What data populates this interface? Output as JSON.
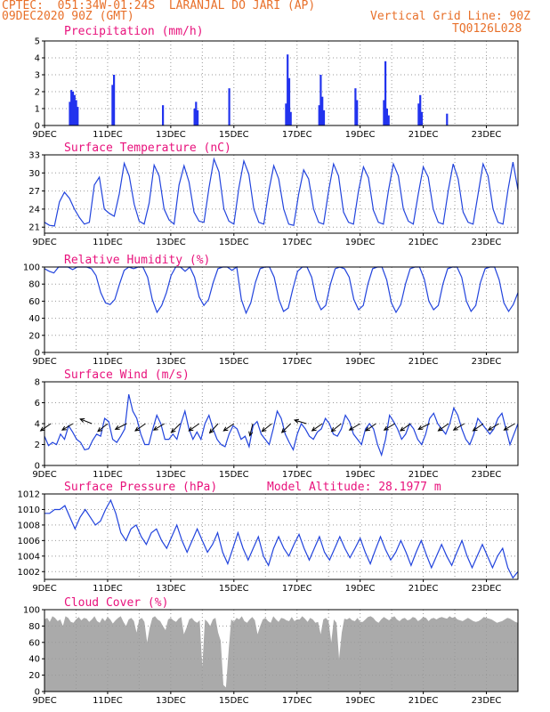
{
  "header": {
    "line1_left": "CPTEC:  051:34W-01:24S  LARANJAL DO JARI (AP)",
    "line2_left": "09DEC2020 90Z (GMT)",
    "line2_right": "Vertical Grid Line: 90Z",
    "line3_right": "TQ0126L028"
  },
  "colors": {
    "header": "#e8702a",
    "title": "#e8127c",
    "line": "#2244dd",
    "bar": "#2233ee",
    "cloud": "#aaaaaa",
    "grid": "#999999"
  },
  "x_ticks": [
    "9DEC",
    "11DEC",
    "13DEC",
    "15DEC",
    "17DEC",
    "19DEC",
    "21DEC",
    "23DEC"
  ],
  "chart_data": [
    {
      "type": "bar",
      "title": "Precipitation (mm/h)",
      "ylim": [
        0,
        5
      ],
      "yticks": [
        0,
        1,
        2,
        3,
        4,
        5
      ],
      "grid": true,
      "x_unit": "days since 09DEC2020",
      "series": [
        {
          "color": "#2233ee",
          "points": [
            [
              0.8,
              1.4
            ],
            [
              0.85,
              2.1
            ],
            [
              0.9,
              2.0
            ],
            [
              0.95,
              1.8
            ],
            [
              1.0,
              1.5
            ],
            [
              1.05,
              1.1
            ],
            [
              2.15,
              2.4
            ],
            [
              2.2,
              3.0
            ],
            [
              3.75,
              1.2
            ],
            [
              4.75,
              1.0
            ],
            [
              4.8,
              1.4
            ],
            [
              4.85,
              0.9
            ],
            [
              5.85,
              2.2
            ],
            [
              7.65,
              1.3
            ],
            [
              7.7,
              4.2
            ],
            [
              7.75,
              2.8
            ],
            [
              7.8,
              0.8
            ],
            [
              8.7,
              1.2
            ],
            [
              8.75,
              3.0
            ],
            [
              8.8,
              1.7
            ],
            [
              8.85,
              0.9
            ],
            [
              9.85,
              2.2
            ],
            [
              9.9,
              1.5
            ],
            [
              10.75,
              1.5
            ],
            [
              10.8,
              3.8
            ],
            [
              10.85,
              1.0
            ],
            [
              10.9,
              0.6
            ],
            [
              11.85,
              1.3
            ],
            [
              11.9,
              1.8
            ],
            [
              11.95,
              0.8
            ],
            [
              12.75,
              0.7
            ]
          ]
        }
      ]
    },
    {
      "type": "line",
      "title": "Surface Temperature (nC)",
      "ylim": [
        20,
        33
      ],
      "yticks": [
        21,
        24,
        27,
        30,
        33
      ],
      "grid": true,
      "series": [
        {
          "color": "#2244dd",
          "values": [
            21.8,
            21.3,
            21.2,
            25.2,
            26.8,
            25.8,
            24.0,
            22.6,
            21.5,
            21.8,
            28.0,
            29.3,
            24.0,
            23.3,
            22.8,
            26.5,
            31.6,
            29.5,
            24.8,
            22.0,
            21.5,
            25.0,
            31.3,
            29.5,
            24.0,
            22.2,
            21.5,
            28.0,
            31.2,
            28.5,
            23.5,
            22.0,
            21.8,
            27.5,
            32.3,
            30.2,
            24.0,
            22.0,
            21.5,
            27.5,
            32.0,
            29.8,
            24.0,
            21.8,
            21.5,
            27.0,
            31.2,
            29.0,
            24.0,
            21.5,
            21.3,
            26.5,
            30.5,
            29.0,
            24.0,
            21.8,
            21.5,
            27.0,
            31.5,
            29.5,
            23.5,
            21.8,
            21.5,
            27.0,
            31.0,
            29.2,
            23.8,
            21.8,
            21.5,
            27.0,
            31.5,
            29.5,
            24.0,
            22.0,
            21.5,
            26.5,
            31.0,
            29.3,
            24.0,
            21.8,
            21.5,
            27.0,
            31.5,
            29.0,
            23.5,
            21.8,
            21.5,
            26.5,
            31.5,
            29.5,
            24.0,
            21.8,
            21.5,
            27.2,
            31.8,
            27.2
          ]
        }
      ]
    },
    {
      "type": "line",
      "title": "Relative Humidity (%)",
      "ylim": [
        0,
        100
      ],
      "yticks": [
        0,
        20,
        40,
        60,
        80,
        100
      ],
      "grid": true,
      "series": [
        {
          "color": "#2244dd",
          "values": [
            98,
            95,
            93,
            100,
            100,
            100,
            97,
            100,
            100,
            100,
            98,
            90,
            70,
            58,
            56,
            62,
            80,
            96,
            100,
            98,
            100,
            100,
            88,
            62,
            47,
            55,
            70,
            90,
            100,
            100,
            95,
            100,
            88,
            65,
            55,
            62,
            82,
            98,
            100,
            100,
            96,
            100,
            62,
            46,
            58,
            82,
            98,
            100,
            100,
            88,
            62,
            48,
            52,
            75,
            95,
            100,
            100,
            88,
            62,
            50,
            55,
            80,
            98,
            100,
            98,
            88,
            62,
            50,
            55,
            80,
            98,
            100,
            100,
            85,
            58,
            47,
            56,
            80,
            98,
            100,
            100,
            86,
            60,
            50,
            55,
            80,
            98,
            100,
            100,
            88,
            60,
            48,
            55,
            82,
            98,
            100,
            100,
            85,
            58,
            48,
            56,
            70
          ]
        }
      ]
    },
    {
      "type": "line",
      "title": "Surface Wind (m/s)",
      "ylim": [
        0,
        8
      ],
      "yticks": [
        0,
        2,
        4,
        6,
        8
      ],
      "grid": true,
      "series": [
        {
          "color": "#2244dd",
          "values": [
            2.8,
            1.9,
            2.2,
            2.0,
            3.0,
            2.5,
            3.8,
            3.2,
            2.5,
            2.2,
            1.5,
            1.6,
            2.4,
            3.0,
            2.8,
            4.5,
            4.2,
            2.5,
            2.2,
            2.8,
            3.5,
            6.8,
            5.2,
            4.5,
            3.0,
            2.0,
            2.0,
            3.5,
            4.8,
            4.0,
            2.5,
            2.5,
            3.0,
            2.5,
            4.0,
            5.2,
            3.5,
            2.5,
            3.2,
            2.5,
            4.0,
            4.8,
            3.5,
            2.5,
            2.0,
            1.8,
            3.0,
            3.8,
            3.5,
            2.5,
            2.8,
            1.8,
            3.8,
            4.2,
            3.0,
            2.5,
            2.0,
            3.5,
            5.2,
            4.5,
            3.0,
            2.2,
            1.5,
            3.0,
            4.0,
            3.5,
            2.8,
            2.5,
            3.2,
            3.5,
            4.5,
            4.0,
            3.0,
            2.8,
            3.5,
            4.8,
            4.2,
            3.0,
            2.5,
            2.0,
            3.5,
            4.0,
            3.5,
            2.0,
            1.0,
            2.5,
            4.8,
            4.2,
            3.5,
            2.5,
            3.0,
            4.0,
            3.5,
            2.5,
            2.0,
            3.0,
            4.5,
            5.0,
            4.0,
            3.5,
            3.0,
            4.0,
            5.5,
            4.8,
            3.5,
            2.5,
            2.0,
            3.0,
            4.5,
            4.0,
            3.5,
            3.0,
            3.5,
            4.5,
            5.0,
            3.5,
            2.0,
            3.0,
            4.0
          ]
        }
      ],
      "wind_vectors": [
        {
          "x": 0.2,
          "u": -1.0,
          "v": -0.7
        },
        {
          "x": 0.9,
          "u": -1.0,
          "v": -0.6
        },
        {
          "x": 1.5,
          "u": -1.0,
          "v": 0.4
        },
        {
          "x": 2.0,
          "u": -1.0,
          "v": -0.8
        },
        {
          "x": 2.6,
          "u": -1.0,
          "v": -0.5
        },
        {
          "x": 3.2,
          "u": -1.0,
          "v": -0.7
        },
        {
          "x": 3.8,
          "u": -1.0,
          "v": -0.6
        },
        {
          "x": 4.3,
          "u": -1.0,
          "v": -1.0
        },
        {
          "x": 4.9,
          "u": -1.0,
          "v": -0.7
        },
        {
          "x": 5.5,
          "u": -1.0,
          "v": -1.1
        },
        {
          "x": 6.0,
          "u": -1.0,
          "v": -0.7
        },
        {
          "x": 6.6,
          "u": -0.3,
          "v": -1.2
        },
        {
          "x": 7.2,
          "u": -1.0,
          "v": -0.8
        },
        {
          "x": 7.8,
          "u": -1.0,
          "v": -1.0
        },
        {
          "x": 8.3,
          "u": -1.0,
          "v": 0.3
        },
        {
          "x": 8.8,
          "u": -1.0,
          "v": -0.7
        },
        {
          "x": 9.4,
          "u": -1.0,
          "v": -0.8
        },
        {
          "x": 10.0,
          "u": -1.0,
          "v": -0.6
        },
        {
          "x": 10.5,
          "u": -1.0,
          "v": -0.7
        },
        {
          "x": 11.1,
          "u": -1.0,
          "v": -0.6
        },
        {
          "x": 11.6,
          "u": -1.0,
          "v": -0.7
        },
        {
          "x": 12.2,
          "u": -1.0,
          "v": -0.5
        },
        {
          "x": 12.8,
          "u": -1.0,
          "v": -0.7
        },
        {
          "x": 13.3,
          "u": -1.0,
          "v": -0.6
        },
        {
          "x": 13.9,
          "u": -1.0,
          "v": -0.7
        },
        {
          "x": 14.4,
          "u": -1.0,
          "v": -0.6
        },
        {
          "x": 14.9,
          "u": -1.0,
          "v": -0.6
        }
      ]
    },
    {
      "type": "line",
      "title": "Surface Pressure (hPa)",
      "annotation": "Model Altitude: 28.1977 m",
      "ylim": [
        1001,
        1012
      ],
      "yticks": [
        1002,
        1004,
        1006,
        1008,
        1010,
        1012
      ],
      "grid": true,
      "series": [
        {
          "color": "#2244dd",
          "values": [
            1009.5,
            1009.5,
            1010.0,
            1010.0,
            1010.5,
            1009.0,
            1007.5,
            1009.0,
            1010.0,
            1009.0,
            1008.0,
            1008.5,
            1010.0,
            1011.2,
            1009.5,
            1007.0,
            1006.0,
            1007.5,
            1008.0,
            1006.5,
            1005.5,
            1007.0,
            1007.5,
            1006.0,
            1005.0,
            1006.5,
            1008.0,
            1006.0,
            1004.5,
            1006.0,
            1007.5,
            1006.0,
            1004.5,
            1005.5,
            1007.0,
            1004.5,
            1003.0,
            1005.0,
            1007.0,
            1005.0,
            1003.5,
            1005.0,
            1006.5,
            1004.0,
            1002.8,
            1005.0,
            1006.5,
            1005.0,
            1004.0,
            1005.5,
            1006.8,
            1005.0,
            1003.5,
            1005.0,
            1006.5,
            1004.5,
            1003.5,
            1005.0,
            1006.5,
            1005.0,
            1003.8,
            1005.0,
            1006.3,
            1004.5,
            1003.0,
            1004.8,
            1006.5,
            1004.8,
            1003.5,
            1004.5,
            1006.0,
            1004.5,
            1002.8,
            1004.5,
            1006.0,
            1004.2,
            1002.5,
            1004.0,
            1005.5,
            1004.0,
            1002.8,
            1004.5,
            1006.0,
            1004.0,
            1002.5,
            1004.0,
            1005.5,
            1004.0,
            1002.5,
            1004.0,
            1005.0,
            1002.5,
            1001.2,
            1002.0
          ]
        }
      ]
    },
    {
      "type": "area",
      "title": "Cloud Cover (%)",
      "ylim": [
        0,
        100
      ],
      "yticks": [
        0,
        20,
        40,
        60,
        80,
        100
      ],
      "grid": true,
      "series": [
        {
          "color": "#aaaaaa",
          "values": [
            88,
            90,
            85,
            92,
            90,
            86,
            88,
            80,
            92,
            90,
            85,
            84,
            88,
            91,
            87,
            90,
            89,
            85,
            88,
            92,
            86,
            84,
            90,
            86,
            91,
            88,
            83,
            87,
            90,
            92,
            85,
            80,
            88,
            90,
            86,
            72,
            88,
            90,
            85,
            60,
            78,
            90,
            92,
            88,
            86,
            80,
            75,
            88,
            90,
            87,
            85,
            89,
            91,
            70,
            78,
            88,
            90,
            86,
            84,
            87,
            30,
            88,
            85,
            80,
            88,
            90,
            72,
            62,
            8,
            5,
            50,
            88,
            85,
            90,
            88,
            92,
            86,
            84,
            88,
            91,
            87,
            70,
            80,
            88,
            90,
            86,
            84,
            92,
            88,
            85,
            90,
            89,
            87,
            86,
            91,
            86,
            88,
            88,
            92,
            89,
            85,
            90,
            88,
            84,
            85,
            70,
            88,
            90,
            86,
            60,
            88,
            84,
            40,
            72,
            89,
            88,
            90,
            87,
            86,
            90,
            85,
            85,
            88,
            91,
            92,
            90,
            86,
            84,
            88,
            91,
            89,
            87,
            90,
            92,
            88,
            86,
            89,
            90,
            87,
            88,
            91,
            90,
            86,
            88,
            91,
            90,
            86,
            89,
            90,
            88,
            90,
            91,
            90,
            89,
            92,
            90,
            91,
            88,
            87,
            86,
            88,
            90,
            88,
            86,
            85,
            86,
            88,
            91,
            90,
            89,
            88,
            86,
            84,
            85,
            86,
            88,
            90,
            89,
            87,
            85,
            84
          ]
        }
      ]
    }
  ]
}
